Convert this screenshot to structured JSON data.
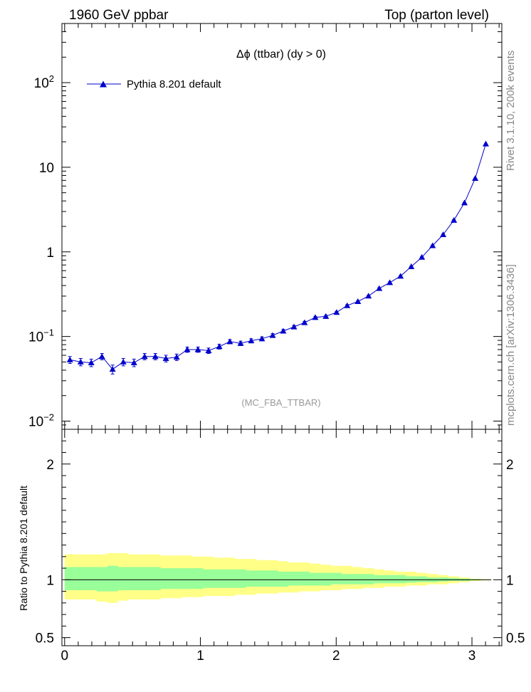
{
  "header": {
    "left": "1960 GeV ppbar",
    "right": "Top (parton level)"
  },
  "side_labels": {
    "rivet": "Rivet 3.1.10, 200k events",
    "mcplots": "mcplots.cern.ch [arXiv:1306.3436]"
  },
  "chart_data": [
    {
      "type": "line",
      "title": "Δϕ (ttbar) (dy > 0)",
      "watermark": "(MC_FBA_TTBAR)",
      "yscale": "log",
      "xlim": [
        -0.02,
        3.22
      ],
      "ylim": [
        0.008,
        500
      ],
      "y_ticks": [
        {
          "v": 0.01,
          "base": "10",
          "exp": "−2"
        },
        {
          "v": 0.1,
          "base": "10",
          "exp": "−1"
        },
        {
          "v": 1,
          "base": "1",
          "exp": ""
        },
        {
          "v": 10,
          "base": "10",
          "exp": ""
        },
        {
          "v": 100,
          "base": "10",
          "exp": "2"
        }
      ],
      "legend": {
        "label": "Pythia 8.201 default",
        "placement": "top-left",
        "color": "#0000cc"
      },
      "series": [
        {
          "name": "Pythia 8.201 default",
          "color": "#0000cc",
          "marker": "triangle",
          "x": [
            0.039,
            0.118,
            0.196,
            0.275,
            0.353,
            0.432,
            0.511,
            0.589,
            0.668,
            0.746,
            0.825,
            0.903,
            0.982,
            1.06,
            1.139,
            1.217,
            1.296,
            1.374,
            1.453,
            1.532,
            1.61,
            1.689,
            1.767,
            1.846,
            1.924,
            2.003,
            2.081,
            2.16,
            2.238,
            2.317,
            2.395,
            2.474,
            2.553,
            2.631,
            2.71,
            2.788,
            2.867,
            2.945,
            3.024,
            3.102
          ],
          "y": [
            0.053,
            0.05,
            0.049,
            0.058,
            0.041,
            0.05,
            0.049,
            0.058,
            0.058,
            0.055,
            0.057,
            0.07,
            0.07,
            0.068,
            0.076,
            0.087,
            0.083,
            0.089,
            0.094,
            0.103,
            0.116,
            0.13,
            0.146,
            0.168,
            0.173,
            0.193,
            0.232,
            0.259,
            0.301,
            0.37,
            0.434,
            0.517,
            0.669,
            0.865,
            1.185,
            1.601,
            2.366,
            3.799,
            7.394,
            18.86
          ],
          "yerr": [
            0.005,
            0.005,
            0.005,
            0.005,
            0.005,
            0.005,
            0.005,
            0.005,
            0.005,
            0.005,
            0.005,
            0.005,
            0.005,
            0.005,
            0.005,
            0.005,
            0.005,
            0.005,
            0.005,
            0.005,
            0.005,
            0.005,
            0.005,
            0.005,
            0.005,
            0.005,
            0.006,
            0.006,
            0.006,
            0.007,
            0.008,
            0.009,
            0.01,
            0.012,
            0.015,
            0.02,
            0.03,
            0.05,
            0.08,
            0.12
          ]
        }
      ]
    },
    {
      "type": "area",
      "ylabel": "Ratio to Pythia 8.201 default",
      "xlim": [
        -0.02,
        3.22
      ],
      "ylim": [
        0.43,
        2.3
      ],
      "x_ticks": [
        0,
        1,
        2,
        3
      ],
      "y_ticks": [
        0.5,
        1,
        2
      ],
      "reference_line": 1,
      "band_edges": [
        0,
        0.079,
        0.157,
        0.236,
        0.314,
        0.393,
        0.471,
        0.55,
        0.628,
        0.707,
        0.785,
        0.864,
        0.942,
        1.021,
        1.1,
        1.178,
        1.257,
        1.335,
        1.414,
        1.492,
        1.571,
        1.649,
        1.728,
        1.806,
        1.885,
        1.963,
        2.042,
        2.121,
        2.199,
        2.278,
        2.356,
        2.435,
        2.513,
        2.592,
        2.67,
        2.749,
        2.827,
        2.906,
        2.985,
        3.063,
        3.142
      ],
      "bands": [
        {
          "name": "outer",
          "color": "#ffff88",
          "hi": [
            1.22,
            1.22,
            1.22,
            1.22,
            1.23,
            1.23,
            1.22,
            1.22,
            1.22,
            1.21,
            1.21,
            1.21,
            1.2,
            1.2,
            1.19,
            1.19,
            1.18,
            1.18,
            1.17,
            1.17,
            1.16,
            1.15,
            1.15,
            1.14,
            1.13,
            1.12,
            1.12,
            1.11,
            1.1,
            1.09,
            1.08,
            1.07,
            1.07,
            1.06,
            1.05,
            1.04,
            1.03,
            1.02,
            1.01,
            1.005
          ],
          "lo": [
            0.83,
            0.83,
            0.83,
            0.81,
            0.8,
            0.82,
            0.83,
            0.83,
            0.83,
            0.84,
            0.84,
            0.85,
            0.85,
            0.86,
            0.86,
            0.86,
            0.87,
            0.87,
            0.88,
            0.88,
            0.89,
            0.89,
            0.9,
            0.9,
            0.91,
            0.91,
            0.92,
            0.92,
            0.93,
            0.93,
            0.94,
            0.94,
            0.95,
            0.95,
            0.96,
            0.96,
            0.97,
            0.98,
            0.99,
            0.995
          ]
        },
        {
          "name": "inner",
          "color": "#99ff99",
          "hi": [
            1.11,
            1.11,
            1.11,
            1.11,
            1.12,
            1.11,
            1.11,
            1.11,
            1.11,
            1.1,
            1.1,
            1.1,
            1.1,
            1.09,
            1.09,
            1.09,
            1.09,
            1.08,
            1.08,
            1.08,
            1.07,
            1.07,
            1.07,
            1.06,
            1.06,
            1.06,
            1.05,
            1.05,
            1.05,
            1.04,
            1.04,
            1.04,
            1.03,
            1.03,
            1.02,
            1.02,
            1.015,
            1.01,
            1.005,
            1.002
          ],
          "lo": [
            0.91,
            0.91,
            0.91,
            0.9,
            0.9,
            0.91,
            0.91,
            0.91,
            0.91,
            0.92,
            0.92,
            0.92,
            0.92,
            0.93,
            0.93,
            0.93,
            0.93,
            0.94,
            0.94,
            0.94,
            0.94,
            0.95,
            0.95,
            0.95,
            0.95,
            0.96,
            0.96,
            0.96,
            0.96,
            0.97,
            0.97,
            0.97,
            0.975,
            0.98,
            0.98,
            0.985,
            0.99,
            0.99,
            0.995,
            0.998
          ]
        }
      ]
    }
  ]
}
